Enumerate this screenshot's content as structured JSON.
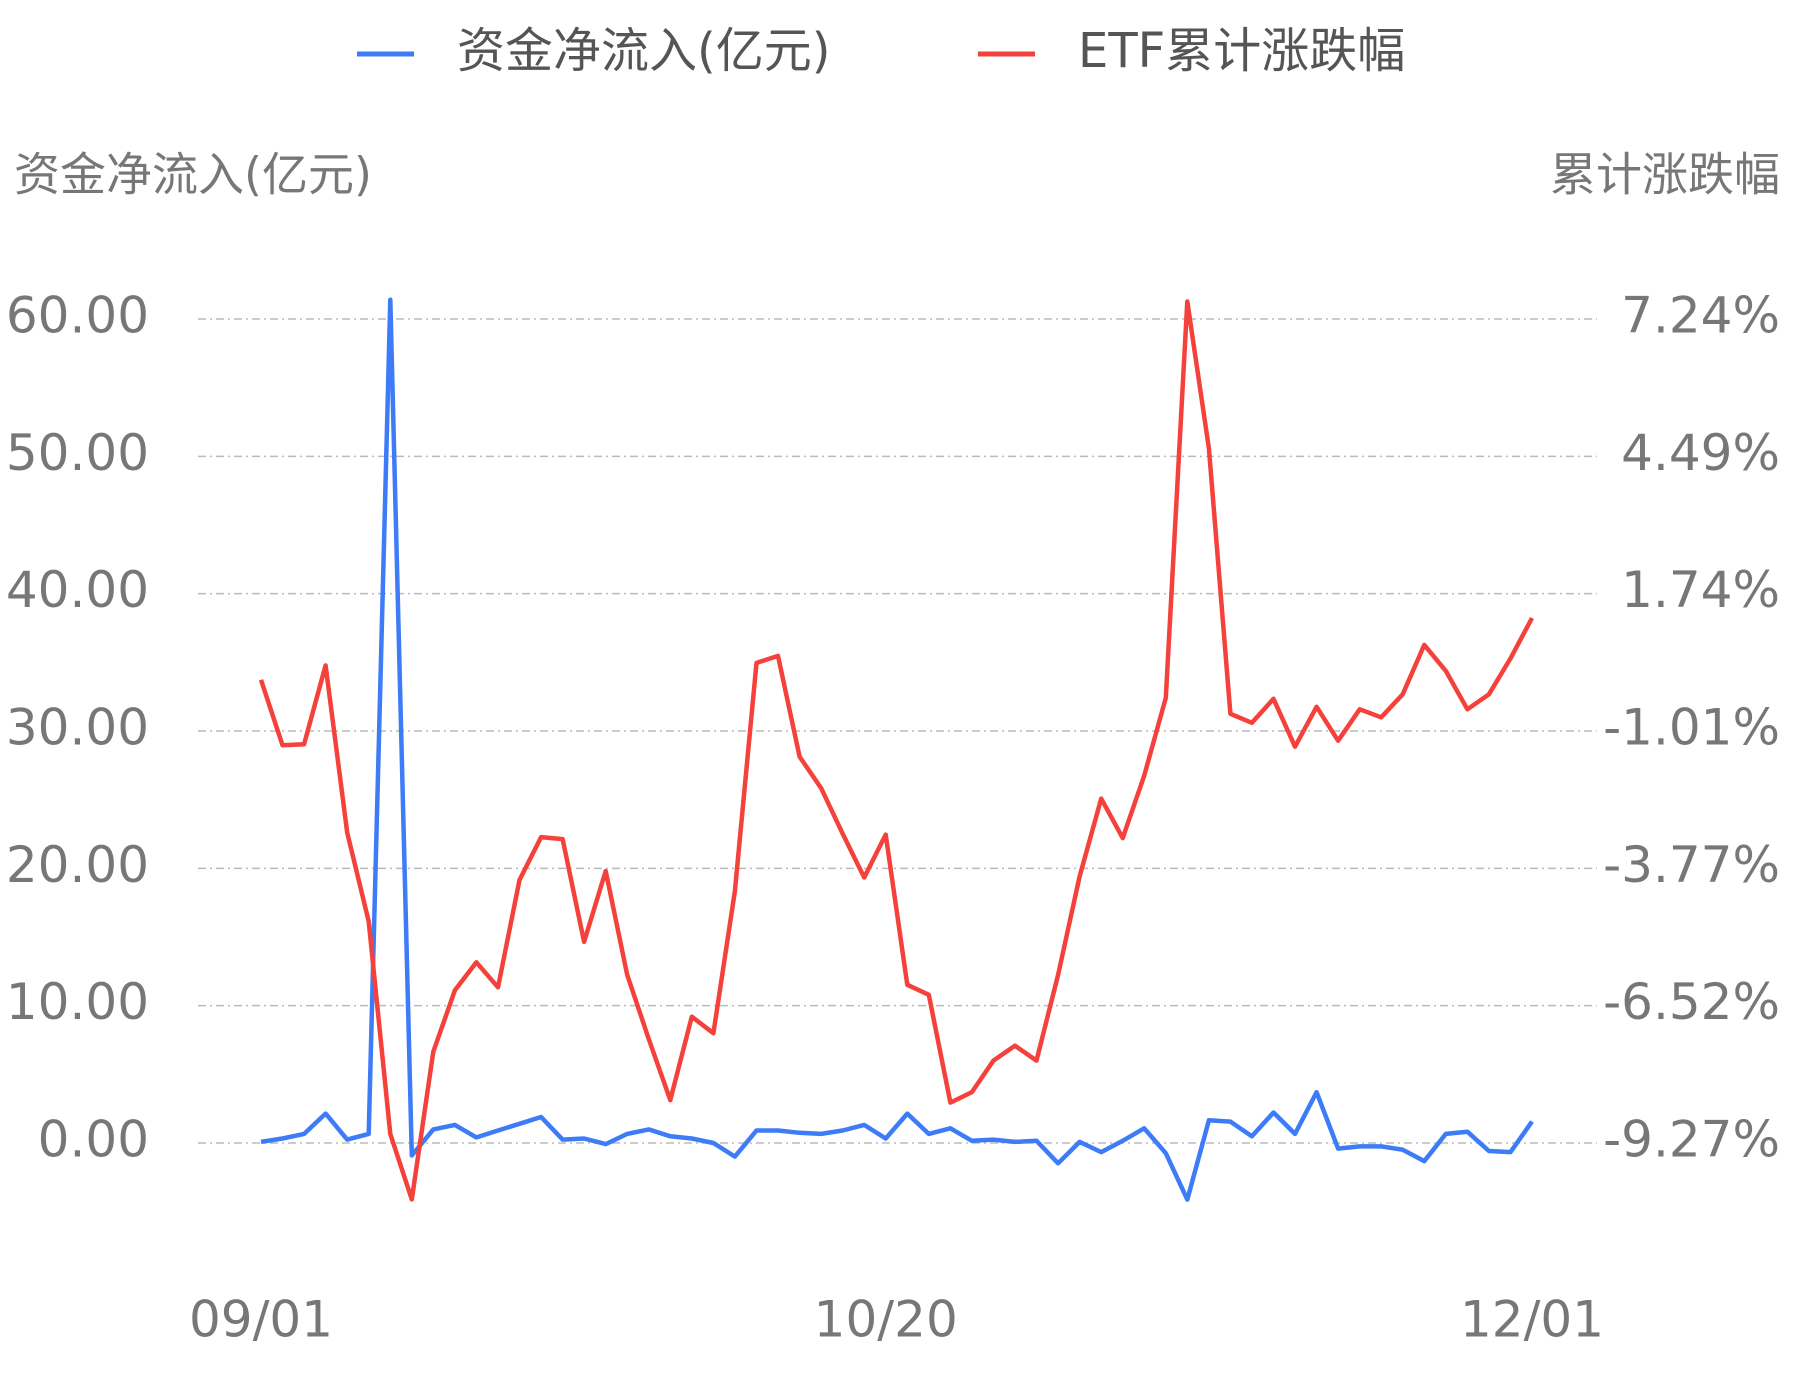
{
  "chart_data": {
    "type": "line",
    "ylabel": "资金净流入(亿元)",
    "y2label": "累计涨跌幅",
    "categories": [
      "09/01",
      null,
      null,
      null,
      null,
      null,
      null,
      null,
      null,
      null,
      null,
      null,
      null,
      null,
      null,
      null,
      null,
      null,
      null,
      null,
      null,
      null,
      null,
      null,
      null,
      null,
      null,
      null,
      null,
      "10/20",
      null,
      null,
      null,
      null,
      null,
      null,
      null,
      null,
      null,
      null,
      null,
      null,
      null,
      null,
      null,
      null,
      null,
      null,
      null,
      null,
      null,
      null,
      null,
      null,
      null,
      null,
      null,
      null,
      null,
      "12/01"
    ],
    "series": [
      {
        "name": "资金净流入(亿元)",
        "color": "#3d7bf7",
        "axis": "y",
        "values": [
          0.08,
          0.33,
          0.66,
          2.14,
          0.25,
          0.66,
          61.4,
          -0.91,
          0.99,
          1.32,
          0.41,
          0.91,
          1.4,
          1.89,
          0.25,
          0.33,
          -0.08,
          0.66,
          0.99,
          0.49,
          0.33,
          0,
          -0.99,
          0.91,
          0.91,
          0.74,
          0.66,
          0.91,
          1.32,
          0.33,
          2.14,
          0.66,
          1.07,
          0.16,
          0.25,
          0.08,
          0.16,
          -1.48,
          0.08,
          -0.66,
          0.16,
          1.07,
          -0.74,
          -4.12,
          1.65,
          1.56,
          0.49,
          2.22,
          0.66,
          3.7,
          -0.41,
          -0.25,
          -0.25,
          -0.49,
          -1.32,
          0.66,
          0.82,
          -0.58,
          -0.66,
          1.56
        ]
      },
      {
        "name": "ETF累计涨跌幅",
        "color": "#f5413b",
        "axis": "y2",
        "values": [
          0.01,
          -1.3,
          -1.28,
          0.3,
          -3.05,
          -4.83,
          -9.09,
          -10.4,
          -7.44,
          -6.21,
          -5.65,
          -6.15,
          -4.0,
          -3.14,
          -3.18,
          -5.24,
          -3.82,
          -5.9,
          -7.19,
          -8.41,
          -6.74,
          -7.07,
          -4.22,
          0.35,
          0.49,
          -1.53,
          -2.16,
          -3.07,
          -3.95,
          -3.09,
          -6.1,
          -6.3,
          -8.46,
          -8.25,
          -7.62,
          -7.32,
          -7.62,
          -5.9,
          -3.93,
          -2.37,
          -3.16,
          -1.91,
          -0.35,
          7.59,
          4.65,
          -0.67,
          -0.85,
          -0.37,
          -1.33,
          -0.53,
          -1.21,
          -0.58,
          -0.74,
          -0.28,
          0.71,
          0.19,
          -0.58,
          -0.28,
          0.44,
          1.25
        ]
      }
    ],
    "ylim": [
      0,
      60
    ],
    "yticks": [
      {
        "value": 0,
        "label": "0.00"
      },
      {
        "value": 10,
        "label": "10.00"
      },
      {
        "value": 20,
        "label": "20.00"
      },
      {
        "value": 30,
        "label": "30.00"
      },
      {
        "value": 40,
        "label": "40.00"
      },
      {
        "value": 50,
        "label": "50.00"
      },
      {
        "value": 60,
        "label": "60.00"
      }
    ],
    "y2lim": [
      -9.27,
      7.24
    ],
    "y2ticks": [
      {
        "value": -9.27,
        "label": "-9.27%"
      },
      {
        "value": -6.52,
        "label": "-6.52%"
      },
      {
        "value": -3.77,
        "label": "-3.77%"
      },
      {
        "value": -1.01,
        "label": "-1.01%"
      },
      {
        "value": 1.74,
        "label": "1.74%"
      },
      {
        "value": 4.49,
        "label": "4.49%"
      },
      {
        "value": 7.24,
        "label": "7.24%"
      }
    ],
    "grid": true,
    "legend": "top"
  }
}
